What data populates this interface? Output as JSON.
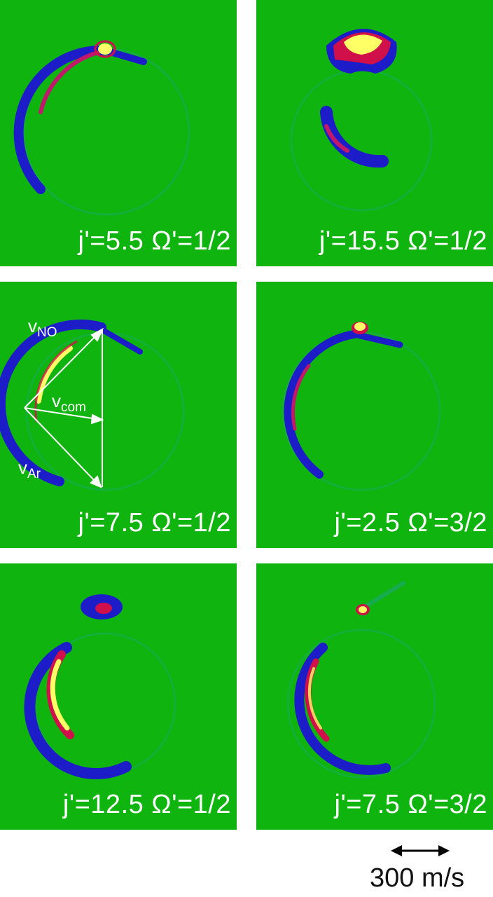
{
  "panels": [
    {
      "caption": "j'=5.5 Ω'=1/2"
    },
    {
      "caption": "j'=15.5 Ω'=1/2"
    },
    {
      "caption": "j'=7.5 Ω'=1/2",
      "vectors": {
        "v_no": "v",
        "v_no_sub": "NO",
        "v_com": "v",
        "v_com_sub": "com",
        "v_ar": "v",
        "v_ar_sub": "Ar"
      }
    },
    {
      "caption": "j'=2.5 Ω'=3/2"
    },
    {
      "caption": "j'=12.5 Ω'=1/2"
    },
    {
      "caption": "j'=7.5 Ω'=3/2"
    }
  ],
  "scale_bar": {
    "label": "300 m/s"
  },
  "colors": {
    "background": "#0fb40f",
    "low": "#2a2acc",
    "mid": "#d0104a",
    "high": "#ffff66",
    "text": "#ffffff"
  }
}
